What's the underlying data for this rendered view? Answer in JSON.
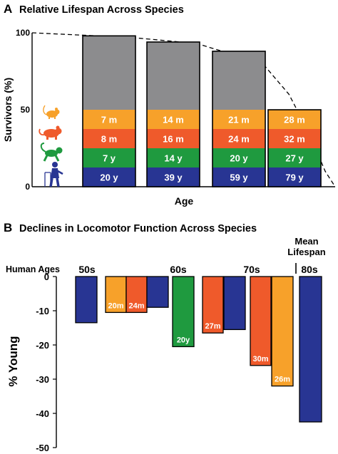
{
  "chart_data": [
    {
      "type": "bar",
      "panel_label": "A",
      "title": "Relative Lifespan Across Species",
      "xlabel": "Age",
      "ylabel": "Survivors (%)",
      "ylim": [
        0,
        100
      ],
      "yticks": [
        "0",
        "50",
        "100"
      ],
      "survival_curve": {
        "style": "dashed",
        "points": [
          [
            0,
            100
          ],
          [
            0.5,
            99
          ],
          [
            1.5,
            97
          ],
          [
            2.5,
            93
          ],
          [
            3.5,
            80
          ],
          [
            3.9,
            60
          ],
          [
            4.2,
            35
          ],
          [
            4.45,
            10
          ],
          [
            4.6,
            0
          ]
        ]
      },
      "species_icons": [
        "mouse-icon",
        "rat-icon",
        "monkey-icon",
        "elderly-human-icon"
      ],
      "band_colors": [
        "#f7a12a",
        "#ef5a2b",
        "#1f9a3f",
        "#283593"
      ],
      "top_color": "#8c8c8e",
      "bars": [
        {
          "total": 98,
          "labels": [
            "7 m",
            "8 m",
            "7 y",
            "20 y"
          ]
        },
        {
          "total": 94,
          "labels": [
            "14 m",
            "16 m",
            "14 y",
            "39 y"
          ]
        },
        {
          "total": 88,
          "labels": [
            "21 m",
            "24 m",
            "20 y",
            "59 y"
          ]
        },
        {
          "total": 50,
          "labels": [
            "28 m",
            "32 m",
            "27 y",
            "79 y"
          ]
        }
      ],
      "band_values": [
        12.5,
        12.5,
        12.5,
        12.5
      ]
    },
    {
      "type": "bar",
      "panel_label": "B",
      "title": "Declines in Locomotor Function Across Species",
      "ylabel": "% Young",
      "ylim": [
        -50,
        0
      ],
      "yticks": [
        "0",
        "-10",
        "-20",
        "-30",
        "-40",
        "-50"
      ],
      "row_label": "Human Ages",
      "age_labels": [
        "50s",
        "60s",
        "70s",
        "80s"
      ],
      "annotation": "Mean\nLifespan",
      "colors": {
        "orange": "#f7a12a",
        "red": "#ef5a2b",
        "green": "#1f9a3f",
        "blue": "#283593"
      },
      "bars": [
        {
          "value": -13.5,
          "color": "blue",
          "label": ""
        },
        {
          "value": -10.5,
          "color": "orange",
          "label": "20m"
        },
        {
          "value": -10.5,
          "color": "red",
          "label": "24m"
        },
        {
          "value": -9,
          "color": "blue",
          "label": ""
        },
        {
          "value": -20.5,
          "color": "green",
          "label": "20y"
        },
        {
          "value": -16.5,
          "color": "red",
          "label": "27m"
        },
        {
          "value": -15.5,
          "color": "blue",
          "label": ""
        },
        {
          "value": -26,
          "color": "red",
          "label": "30m"
        },
        {
          "value": -32,
          "color": "orange",
          "label": "26m"
        },
        {
          "value": -42.5,
          "color": "blue",
          "label": ""
        }
      ]
    }
  ]
}
